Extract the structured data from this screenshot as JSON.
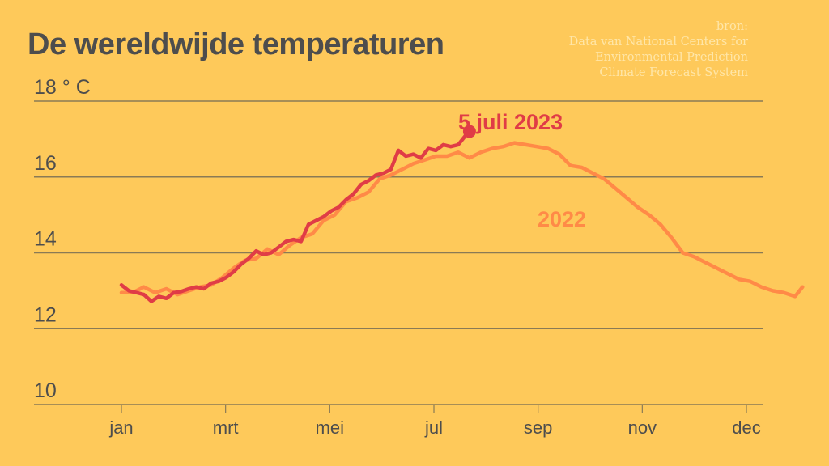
{
  "title": "De wereldwijde temperaturen",
  "source": {
    "lines": [
      "bron:",
      "Data van National Centers for",
      "Environmental Prediction",
      "Climate Forecast System"
    ]
  },
  "colors": {
    "background": "#fec95a",
    "text": "#4d4d4d",
    "series_2023": "#e03c46",
    "series_2022": "#ff8a47",
    "grid": "#8a7a55",
    "source_text": "#ffe6a8"
  },
  "chart_data": {
    "type": "line",
    "title": "De wereldwijde temperaturen",
    "xlabel": "",
    "ylabel": "° C",
    "ylim": [
      10,
      18
    ],
    "yticks": [
      10,
      12,
      14,
      16,
      18
    ],
    "ytick_labels": [
      "10",
      "12",
      "14",
      "16",
      "18 ° C"
    ],
    "xticks": [
      "jan",
      "mrt",
      "mei",
      "jul",
      "sep",
      "nov",
      "dec"
    ],
    "grid": "horizontal",
    "legend": "inline labels",
    "annotations": [
      {
        "text": "5 juli 2023",
        "series": "2023",
        "x_day": 186,
        "y": 17.2
      },
      {
        "text": "2022",
        "series": "2022"
      }
    ],
    "series": [
      {
        "name": "2023",
        "x_day": [
          0,
          4,
          8,
          12,
          16,
          20,
          24,
          28,
          32,
          36,
          40,
          44,
          48,
          52,
          56,
          60,
          64,
          68,
          72,
          76,
          80,
          84,
          88,
          92,
          96,
          100,
          104,
          108,
          112,
          116,
          120,
          124,
          128,
          132,
          136,
          140,
          144,
          148,
          152,
          156,
          160,
          164,
          168,
          172,
          176,
          180,
          184,
          186
        ],
        "values": [
          13.15,
          13.0,
          12.95,
          12.9,
          12.72,
          12.85,
          12.8,
          12.95,
          12.98,
          13.05,
          13.1,
          13.05,
          13.2,
          13.25,
          13.35,
          13.5,
          13.7,
          13.85,
          14.05,
          13.95,
          14.0,
          14.15,
          14.3,
          14.35,
          14.3,
          14.75,
          14.85,
          14.95,
          15.1,
          15.2,
          15.4,
          15.55,
          15.8,
          15.9,
          16.05,
          16.1,
          16.2,
          16.7,
          16.55,
          16.6,
          16.5,
          16.75,
          16.7,
          16.85,
          16.8,
          16.85,
          17.1,
          17.2
        ]
      },
      {
        "name": "2022",
        "x_day": [
          0,
          6,
          12,
          18,
          24,
          30,
          36,
          42,
          48,
          54,
          60,
          66,
          72,
          78,
          84,
          90,
          96,
          102,
          108,
          114,
          120,
          126,
          132,
          138,
          144,
          150,
          156,
          162,
          168,
          174,
          180,
          186,
          192,
          198,
          204,
          210,
          216,
          222,
          228,
          234,
          240,
          246,
          252,
          258,
          264,
          270,
          276,
          282,
          288,
          294,
          300,
          306,
          312,
          318,
          324,
          330,
          336,
          342,
          348,
          354,
          360,
          364
        ],
        "values": [
          12.95,
          12.95,
          13.1,
          12.95,
          13.05,
          12.9,
          13.0,
          13.1,
          13.15,
          13.35,
          13.6,
          13.8,
          13.85,
          14.1,
          13.95,
          14.2,
          14.4,
          14.5,
          14.85,
          15.0,
          15.35,
          15.45,
          15.6,
          15.95,
          16.05,
          16.2,
          16.35,
          16.45,
          16.55,
          16.55,
          16.65,
          16.5,
          16.65,
          16.75,
          16.8,
          16.9,
          16.85,
          16.8,
          16.75,
          16.6,
          16.3,
          16.25,
          16.1,
          15.95,
          15.7,
          15.45,
          15.2,
          15.0,
          14.75,
          14.4,
          14.0,
          13.9,
          13.75,
          13.6,
          13.45,
          13.3,
          13.25,
          13.1,
          13.0,
          12.95,
          12.85,
          13.1
        ]
      }
    ]
  }
}
